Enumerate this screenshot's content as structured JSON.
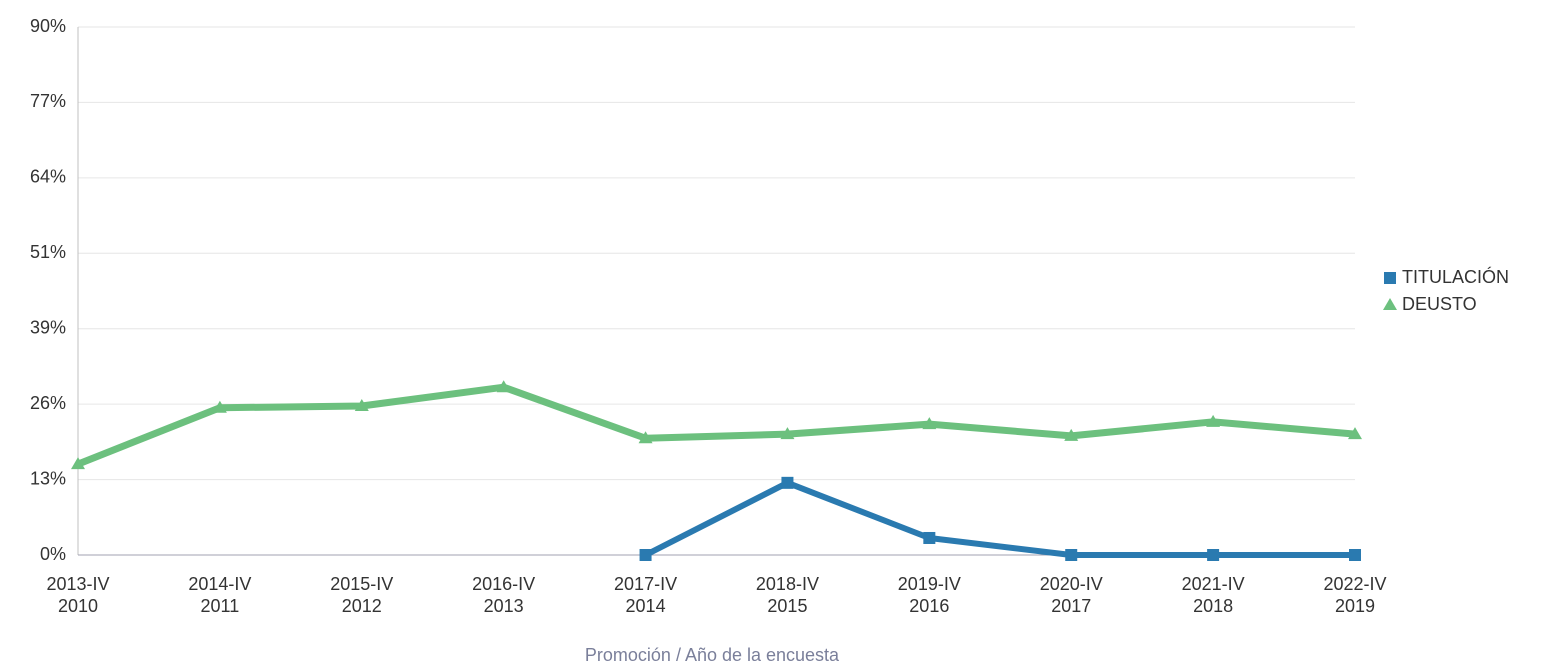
{
  "chart_data": {
    "type": "line",
    "categories": [
      [
        "2013-IV",
        "2010"
      ],
      [
        "2014-IV",
        "2011"
      ],
      [
        "2015-IV",
        "2012"
      ],
      [
        "2016-IV",
        "2013"
      ],
      [
        "2017-IV",
        "2014"
      ],
      [
        "2018-IV",
        "2015"
      ],
      [
        "2019-IV",
        "2016"
      ],
      [
        "2020-IV",
        "2017"
      ],
      [
        "2021-IV",
        "2018"
      ],
      [
        "2022-IV",
        "2019"
      ]
    ],
    "series": [
      {
        "name": "TITULACIÓN",
        "color": "#2a7ab0",
        "marker": "square",
        "values": [
          null,
          null,
          null,
          null,
          0,
          12.3,
          2.9,
          0,
          0,
          0
        ]
      },
      {
        "name": "DEUSTO",
        "color": "#6cc07e",
        "marker": "triangle",
        "values": [
          15.5,
          25.1,
          25.4,
          28.6,
          19.9,
          20.6,
          22.3,
          20.3,
          22.7,
          20.6
        ]
      }
    ],
    "ylim": [
      0,
      90
    ],
    "yticks": [
      {
        "value": 0,
        "label": "0%"
      },
      {
        "value": 12.857,
        "label": "13%"
      },
      {
        "value": 25.714,
        "label": "26%"
      },
      {
        "value": 38.571,
        "label": "39%"
      },
      {
        "value": 51.429,
        "label": "51%"
      },
      {
        "value": 64.286,
        "label": "64%"
      },
      {
        "value": 77.143,
        "label": "77%"
      },
      {
        "value": 90,
        "label": "90%"
      }
    ],
    "xlabel": "Promoción / Año de la encuesta",
    "grid": true,
    "legend": "right"
  }
}
